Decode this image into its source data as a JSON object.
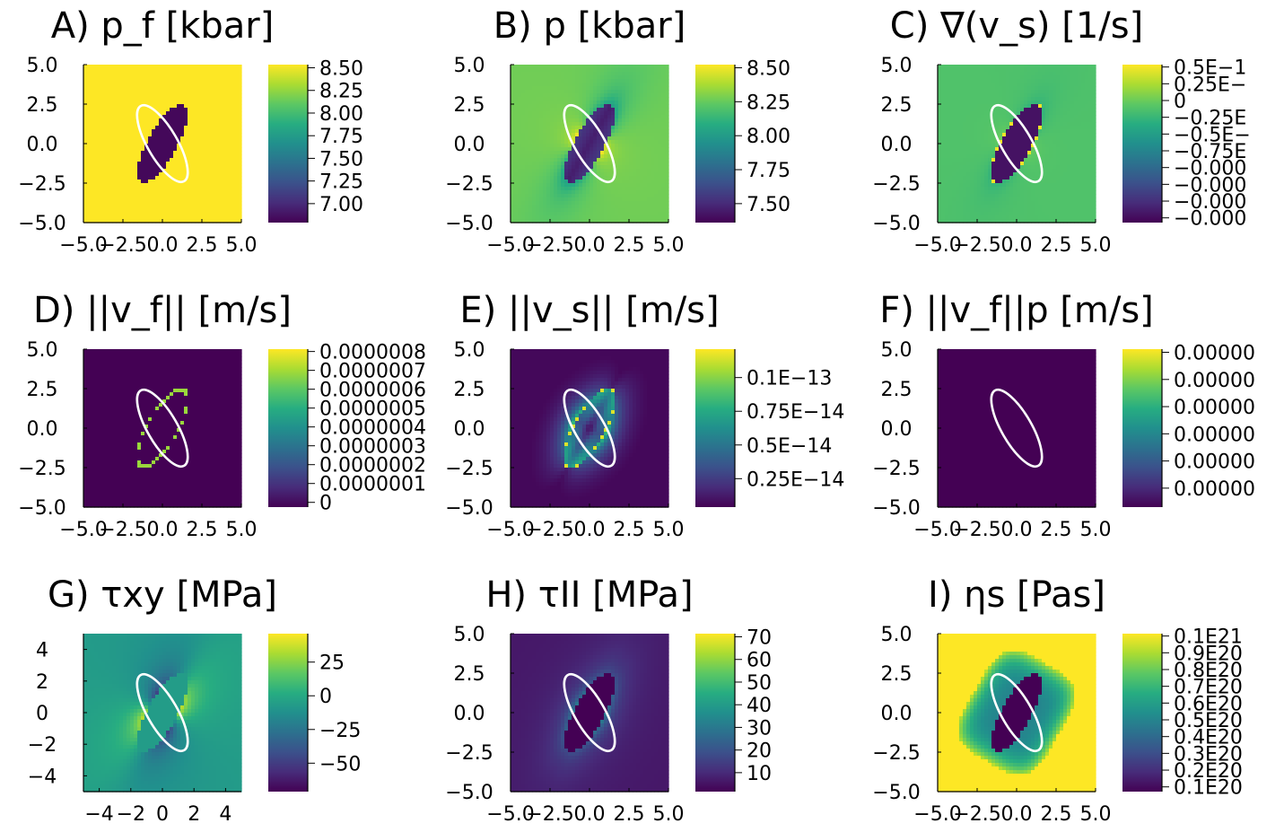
{
  "colormap": [
    "#440154",
    "#472c7a",
    "#3b518b",
    "#2c718e",
    "#21908d",
    "#27ad81",
    "#5cc863",
    "#aadc32",
    "#fde725"
  ],
  "chart_data": [
    {
      "type": "heatmap",
      "title": "A) p_f [kbar]",
      "pattern": "pf",
      "x_ticks": [
        "−5.0",
        "−2.5",
        "0.0",
        "2.5",
        "5.0"
      ],
      "y_ticks": [
        "5.0",
        "2.5",
        "0.0",
        "−2.5",
        "−5.0"
      ],
      "colorbar_ticks": [
        "8.50",
        "8.25",
        "8.00",
        "7.75",
        "7.50",
        "7.25",
        "7.00"
      ],
      "colorbar_range": [
        6.9,
        8.5
      ]
    },
    {
      "type": "heatmap",
      "title": "B) p [kbar]",
      "pattern": "p",
      "x_ticks": [
        "−5.0",
        "−2.5",
        "0.0",
        "2.5",
        "5.0"
      ],
      "y_ticks": [
        "5.0",
        "2.5",
        "0.0",
        "−2.5",
        "−5.0"
      ],
      "colorbar_ticks": [
        "8.50",
        "8.25",
        "8.00",
        "7.75",
        "7.50"
      ],
      "colorbar_range": [
        7.45,
        8.55
      ]
    },
    {
      "type": "heatmap",
      "title": "C) ∇(v_s) [1/s]",
      "pattern": "div",
      "x_ticks": [
        "−5.0",
        "−2.5",
        "0.0",
        "2.5",
        "5.0"
      ],
      "y_ticks": [
        "5.0",
        "2.5",
        "0.0",
        "−2.5",
        "−5.0"
      ],
      "colorbar_ticks": [
        "0.5E−1",
        "0.25E−",
        "0",
        "−0.25E",
        "−0.5E−",
        "−0.75E",
        "−0.000",
        "−0.000",
        "−0.000",
        "−0.000"
      ],
      "colorbar_range": [
        -1,
        1
      ]
    },
    {
      "type": "heatmap",
      "title": "D) ||v_f|| [m/s]",
      "pattern": "vf",
      "x_ticks": [
        "−5.0",
        "−2.5",
        "0.0",
        "2.5",
        "5.0"
      ],
      "y_ticks": [
        "5.0",
        "2.5",
        "0.0",
        "−2.5",
        "−5.0"
      ],
      "colorbar_ticks": [
        "0.0000008",
        "0.0000007",
        "0.0000006",
        "0.0000005",
        "0.0000004",
        "0.0000003",
        "0.0000002",
        "0.0000001",
        "0"
      ],
      "colorbar_range": [
        0,
        8.5e-07
      ]
    },
    {
      "type": "heatmap",
      "title": "E) ||v_s|| [m/s]",
      "pattern": "vs",
      "x_ticks": [
        "−5.0",
        "−2.5",
        "0.0",
        "2.5",
        "5.0"
      ],
      "y_ticks": [
        "5.0",
        "2.5",
        "0.0",
        "−2.5",
        "−5.0"
      ],
      "colorbar_ticks": [
        "0.1E−13",
        "0.75E−14",
        "0.5E−14",
        "0.25E−14"
      ],
      "colorbar_range": [
        0,
        1.2e-14
      ]
    },
    {
      "type": "heatmap",
      "title": "F) ||v_f||p [m/s]",
      "pattern": "zero",
      "x_ticks": [
        "−5.0",
        "−2.5",
        "0.0",
        "2.5",
        "5.0"
      ],
      "y_ticks": [
        "5.0",
        "2.5",
        "0.0",
        "−2.5",
        "−5.0"
      ],
      "colorbar_ticks": [
        "0.00000",
        "0.00000",
        "0.00000",
        "0.00000",
        "0.00000",
        "0.00000"
      ],
      "colorbar_range": [
        0,
        1
      ]
    },
    {
      "type": "heatmap",
      "title": "G) τxy [MPa]",
      "pattern": "txy",
      "x_ticks": [
        "−4",
        "−2",
        "0",
        "2",
        "4"
      ],
      "y_ticks": [
        "4",
        "2",
        "0",
        "−2",
        "−4"
      ],
      "colorbar_ticks": [
        "25",
        "0",
        "−25",
        "−50"
      ],
      "colorbar_range": [
        -65,
        40
      ]
    },
    {
      "type": "heatmap",
      "title": "H) τII [MPa]",
      "pattern": "tII",
      "x_ticks": [
        "−5.0",
        "−2.5",
        "0.0",
        "2.5",
        "5.0"
      ],
      "y_ticks": [
        "5.0",
        "2.5",
        "0.0",
        "−2.5",
        "−5.0"
      ],
      "colorbar_ticks": [
        "70",
        "60",
        "50",
        "40",
        "30",
        "20",
        "10"
      ],
      "colorbar_range": [
        0,
        73
      ]
    },
    {
      "type": "heatmap",
      "title": "I) ηs [Pas]",
      "pattern": "eta",
      "x_ticks": [
        "−5.0",
        "−2.5",
        "0.0",
        "2.5",
        "5.0"
      ],
      "y_ticks": [
        "5.0",
        "2.5",
        "0.0",
        "−2.5",
        "−5.0"
      ],
      "colorbar_ticks": [
        "0.1E21",
        "0.9E20",
        "0.8E20",
        "0.7E20",
        "0.6E20",
        "0.5E20",
        "0.4E20",
        "0.3E20",
        "0.2E20",
        "0.1E20"
      ],
      "colorbar_range": [
        5e+18,
        1e+21
      ]
    }
  ]
}
